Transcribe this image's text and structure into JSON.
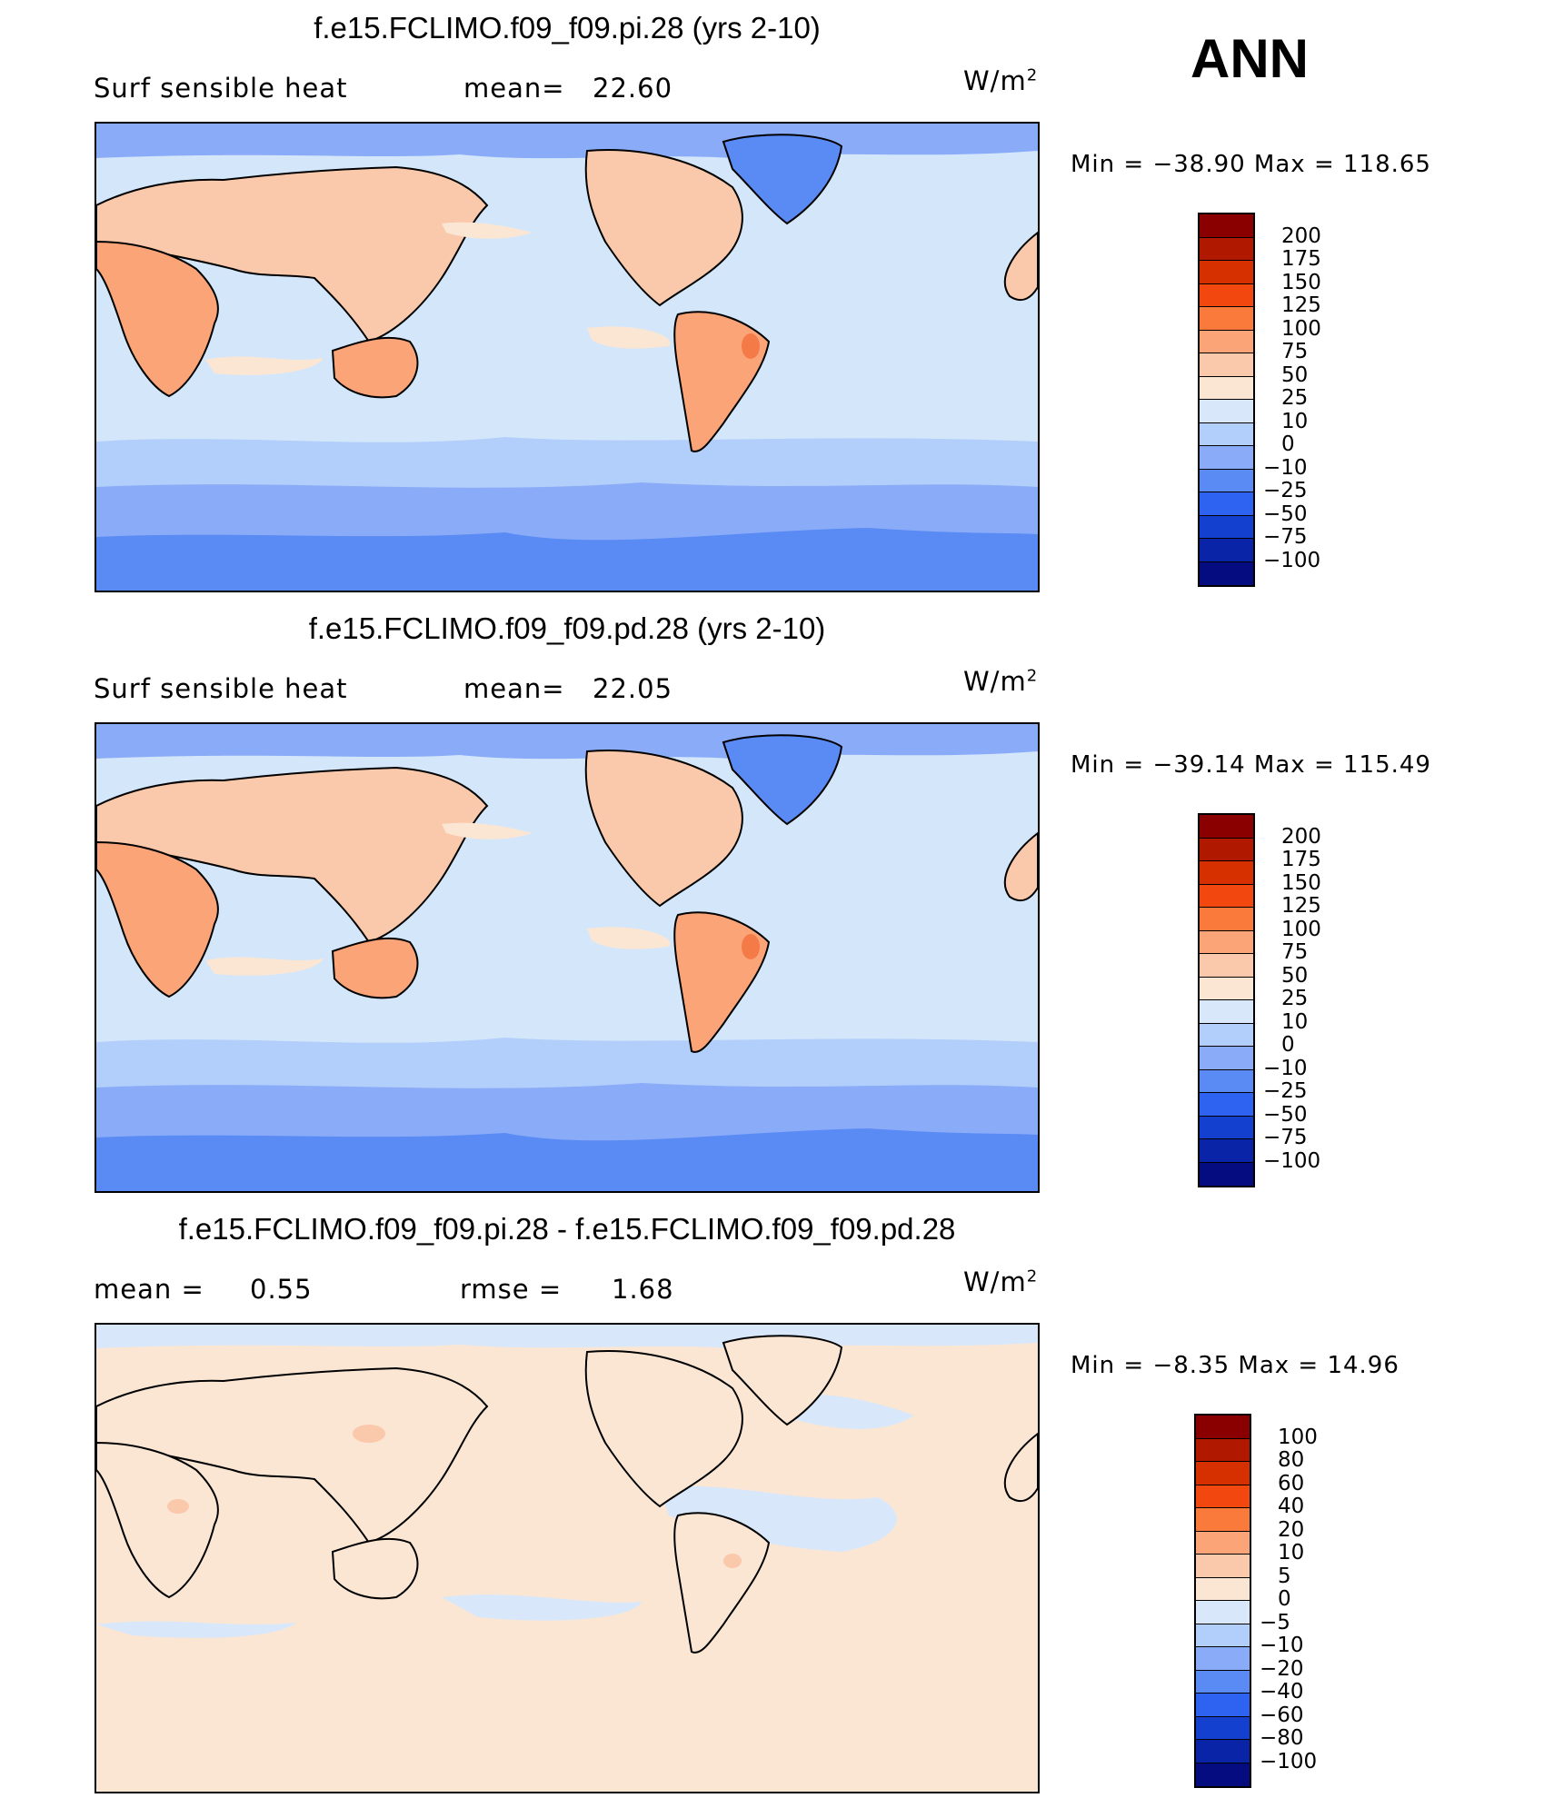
{
  "season": "ANN",
  "panels": [
    {
      "title": "f.e15.FCLIMO.f09_f09.pi.28 (yrs 2-10)",
      "left_label": "Surf  sensible  heat",
      "stat_label": "mean=",
      "stat_value": "22.60",
      "units": "W/m",
      "units_exp": "2",
      "minmax": "Min  =  −38.90  Max  =  118.65"
    },
    {
      "title": "f.e15.FCLIMO.f09_f09.pd.28 (yrs 2-10)",
      "left_label": "Surf  sensible  heat",
      "stat_label": "mean=",
      "stat_value": "22.05",
      "units": "W/m",
      "units_exp": "2",
      "minmax": "Min  =  −39.14  Max  =  115.49"
    },
    {
      "title": "f.e15.FCLIMO.f09_f09.pi.28 - f.e15.FCLIMO.f09_f09.pd.28",
      "left_label": "mean  =",
      "left_value": "0.55",
      "stat_label": "rmse  =",
      "stat_value": "1.68",
      "units": "W/m",
      "units_exp": "2",
      "minmax": "Min  =    −8.35  Max  =    14.96"
    }
  ],
  "colorbar_abs": {
    "labels": [
      "200",
      "175",
      "150",
      "125",
      "100",
      "75",
      "50",
      "25",
      "10",
      "0",
      "−10",
      "−25",
      "−50",
      "−75",
      "−100"
    ],
    "colors": [
      "#8a0000",
      "#b01800",
      "#d63000",
      "#f24810",
      "#fa7a3c",
      "#faa478",
      "#fac8aa",
      "#fbe6d4",
      "#d8e8fa",
      "#b2cefa",
      "#8aacf8",
      "#5a8af4",
      "#2e62f0",
      "#1440d0",
      "#0a24a8",
      "#040c80"
    ]
  },
  "colorbar_diff": {
    "labels": [
      "100",
      "80",
      "60",
      "40",
      "20",
      "10",
      "5",
      "0",
      "−5",
      "−10",
      "−20",
      "−40",
      "−60",
      "−80",
      "−100"
    ],
    "colors": [
      "#8a0000",
      "#b01800",
      "#d63000",
      "#f24810",
      "#fa7a3c",
      "#faa478",
      "#fac8aa",
      "#fbe6d4",
      "#d8e8fa",
      "#b2cefa",
      "#8aacf8",
      "#5a8af4",
      "#2e62f0",
      "#1440d0",
      "#0a24a8",
      "#040c80"
    ]
  },
  "map_colors": {
    "ocean": "#d4e6fa",
    "ocean_cool": "#b2cefa",
    "ocean_cold": "#8aacf8",
    "ice": "#5a8af4",
    "land_warm": "#fac8aa",
    "land_hot": "#faa478",
    "land_very_hot": "#f47a48",
    "diff_bg": "#fbe6d4",
    "diff_cool": "#d8e8fa"
  }
}
